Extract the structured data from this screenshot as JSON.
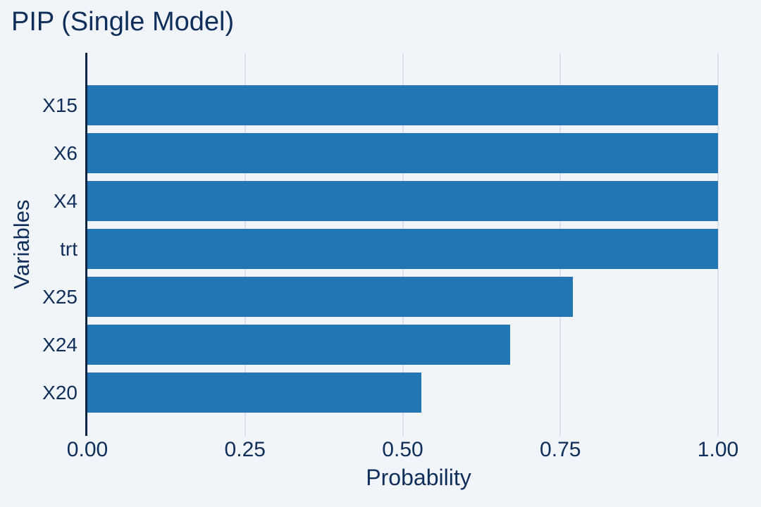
{
  "chart_data": {
    "type": "bar",
    "orientation": "horizontal",
    "title": "PIP (Single Model)",
    "xlabel": "Probability",
    "ylabel": "Variables",
    "categories": [
      "X15",
      "X6",
      "X4",
      "trt",
      "X25",
      "X24",
      "X20"
    ],
    "values": [
      1.0,
      1.0,
      1.0,
      1.0,
      0.77,
      0.67,
      0.53
    ],
    "xlim": [
      0,
      1.05
    ],
    "xticks": [
      0.0,
      0.25,
      0.5,
      0.75,
      1.0
    ],
    "xtick_labels": [
      "0.00",
      "0.25",
      "0.50",
      "0.75",
      "1.00"
    ],
    "grid": "vertical-major-only",
    "legend": "none",
    "colors": {
      "background": "#f1f5fa",
      "bar": "#2276b4",
      "gridline": "#dbe0ea",
      "axis_line": "#0a2342",
      "text": "#0f2e5a"
    }
  }
}
